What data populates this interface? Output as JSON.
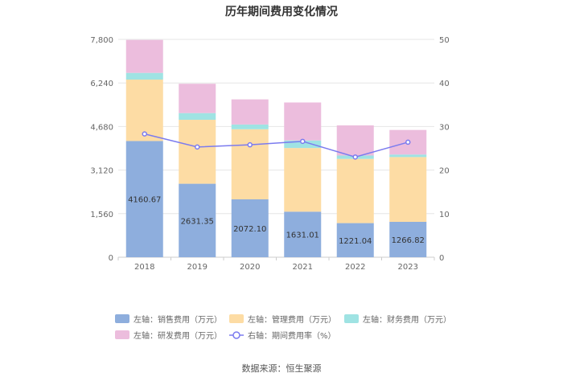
{
  "chart_data": {
    "type": "bar",
    "stacked": true,
    "title": "历年期间费用变化情况",
    "categories": [
      "2018",
      "2019",
      "2020",
      "2021",
      "2022",
      "2023"
    ],
    "y_left": {
      "ticks": [
        "0",
        "1,560",
        "3,120",
        "4,680",
        "6,240",
        "7,800"
      ],
      "ylim": [
        0,
        7800
      ]
    },
    "y_right": {
      "ticks": [
        "0",
        "10",
        "20",
        "30",
        "40",
        "50"
      ],
      "ylim": [
        0,
        50
      ]
    },
    "series": [
      {
        "name": "左轴：销售费用（万元）",
        "color": "#8eaedd",
        "axis": "left",
        "values": [
          4160.67,
          2631.35,
          2072.1,
          1631.01,
          1221.04,
          1266.82
        ],
        "labels": [
          "4160.67",
          "2631.35",
          "2072.10",
          "1631.01",
          "1221.04",
          "1266.82"
        ]
      },
      {
        "name": "左轴：管理费用（万元）",
        "color": "#fddca4",
        "axis": "left",
        "values": [
          2200,
          2290,
          2510,
          2280,
          2300,
          2320
        ]
      },
      {
        "name": "左轴：财务费用（万元）",
        "color": "#9fe3e3",
        "axis": "left",
        "values": [
          240,
          240,
          170,
          270,
          120,
          90
        ]
      },
      {
        "name": "左轴：研发费用（万元）",
        "color": "#ecbddd",
        "axis": "left",
        "values": [
          1180,
          1050,
          900,
          1360,
          1080,
          880
        ]
      }
    ],
    "line": {
      "name": "右轴：期间费用率（%）",
      "color": "#7b7bef",
      "axis": "right",
      "values": [
        28.3,
        25.3,
        25.8,
        26.6,
        23.0,
        26.4
      ]
    }
  },
  "source_text": "数据来源：恒生聚源"
}
